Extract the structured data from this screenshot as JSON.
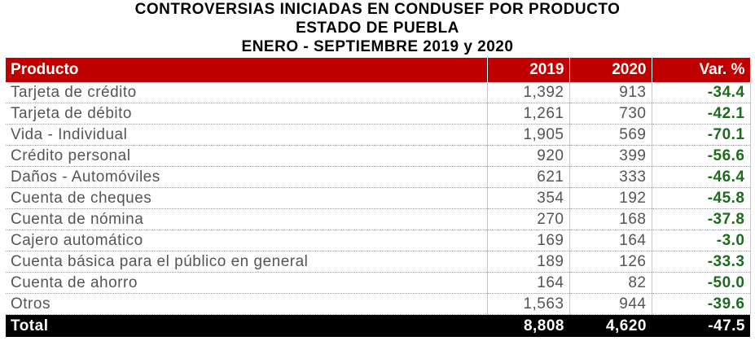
{
  "title": {
    "line1": "CONTROVERSIAS INICIADAS EN CONDUSEF POR PRODUCTO",
    "line2": "ESTADO DE PUEBLA",
    "line3": "ENERO - SEPTIEMBRE 2019 y 2020"
  },
  "headers": {
    "producto": "Producto",
    "y2019": "2019",
    "y2020": "2020",
    "var": "Var. %"
  },
  "rows": [
    {
      "producto": "Tarjeta de crédito",
      "y2019": "1,392",
      "y2020": "913",
      "var": "-34.4"
    },
    {
      "producto": "Tarjeta de débito",
      "y2019": "1,261",
      "y2020": "730",
      "var": "-42.1"
    },
    {
      "producto": "Vida - Individual",
      "y2019": "1,905",
      "y2020": "569",
      "var": "-70.1"
    },
    {
      "producto": "Crédito personal",
      "y2019": "920",
      "y2020": "399",
      "var": "-56.6"
    },
    {
      "producto": "Daños - Automóviles",
      "y2019": "621",
      "y2020": "333",
      "var": "-46.4"
    },
    {
      "producto": "Cuenta de cheques",
      "y2019": "354",
      "y2020": "192",
      "var": "-45.8"
    },
    {
      "producto": "Cuenta de nómina",
      "y2019": "270",
      "y2020": "168",
      "var": "-37.8"
    },
    {
      "producto": "Cajero automático",
      "y2019": "169",
      "y2020": "164",
      "var": "-3.0"
    },
    {
      "producto": "Cuenta básica para el público en general",
      "y2019": "189",
      "y2020": "126",
      "var": "-33.3"
    },
    {
      "producto": "Cuenta de ahorro",
      "y2019": "164",
      "y2020": "82",
      "var": "-50.0"
    },
    {
      "producto": "Otros",
      "y2019": "1,563",
      "y2020": "944",
      "var": "-39.6"
    }
  ],
  "total": {
    "producto": "Total",
    "y2019": "8,808",
    "y2020": "4,620",
    "var": "-47.5"
  },
  "colors": {
    "header_bg": "#c00000",
    "total_bg": "#000000",
    "var_text": "#1e6b1e"
  }
}
